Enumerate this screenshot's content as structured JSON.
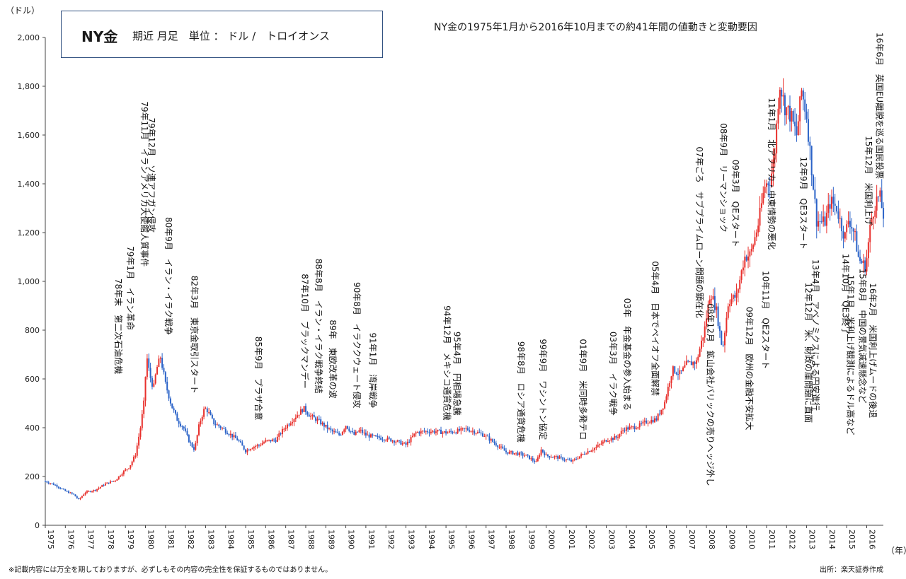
{
  "chart_data": {
    "type": "candlestick",
    "title": "NY金の1975年1月から2016年10月までの約41年間の値動きと変動要因",
    "legend": {
      "name": "NY金",
      "detail": "期近 月足　単位 ： ドル /　トロイオンス"
    },
    "ylabel": "（ドル）",
    "xlabel": "（年）",
    "ylim": [
      0,
      2000
    ],
    "yticks": [
      "0",
      "200",
      "400",
      "600",
      "800",
      "1,000",
      "1,200",
      "1,400",
      "1,600",
      "1,800",
      "2,000"
    ],
    "xlim": [
      1975,
      2016.83
    ],
    "xticks": [
      "1975",
      "1976",
      "1977",
      "1978",
      "1979",
      "1980",
      "1981",
      "1982",
      "1983",
      "1984",
      "1985",
      "1986",
      "1987",
      "1988",
      "1989",
      "1990",
      "1991",
      "1992",
      "1993",
      "1994",
      "1995",
      "1996",
      "1997",
      "1998",
      "1999",
      "2000",
      "2001",
      "2002",
      "2003",
      "2004",
      "2005",
      "2006",
      "2007",
      "2008",
      "2009",
      "2010",
      "2011",
      "2012",
      "2013",
      "2014",
      "2015",
      "2016"
    ],
    "colors": {
      "up": "#e8302c",
      "down": "#2b63c8",
      "axis": "#444444"
    },
    "price_path": [
      [
        1975.0,
        180
      ],
      [
        1975.5,
        165
      ],
      [
        1976.0,
        140
      ],
      [
        1976.4,
        127
      ],
      [
        1976.67,
        105
      ],
      [
        1977.0,
        135
      ],
      [
        1977.5,
        145
      ],
      [
        1978.0,
        170
      ],
      [
        1978.5,
        185
      ],
      [
        1978.9,
        220
      ],
      [
        1979.2,
        240
      ],
      [
        1979.5,
        290
      ],
      [
        1979.75,
        400
      ],
      [
        1979.95,
        520
      ],
      [
        1980.05,
        700
      ],
      [
        1980.2,
        620
      ],
      [
        1980.4,
        560
      ],
      [
        1980.55,
        640
      ],
      [
        1980.75,
        690
      ],
      [
        1981.0,
        580
      ],
      [
        1981.3,
        490
      ],
      [
        1981.6,
        430
      ],
      [
        1981.9,
        400
      ],
      [
        1982.2,
        340
      ],
      [
        1982.45,
        310
      ],
      [
        1982.7,
        420
      ],
      [
        1982.95,
        480
      ],
      [
        1983.1,
        470
      ],
      [
        1983.4,
        420
      ],
      [
        1983.8,
        400
      ],
      [
        1984.2,
        375
      ],
      [
        1984.6,
        350
      ],
      [
        1985.0,
        305
      ],
      [
        1985.3,
        320
      ],
      [
        1985.7,
        330
      ],
      [
        1986.0,
        345
      ],
      [
        1986.5,
        350
      ],
      [
        1986.9,
        395
      ],
      [
        1987.3,
        430
      ],
      [
        1987.6,
        455
      ],
      [
        1987.9,
        480
      ],
      [
        1988.2,
        450
      ],
      [
        1988.6,
        430
      ],
      [
        1988.9,
        410
      ],
      [
        1989.3,
        385
      ],
      [
        1989.7,
        370
      ],
      [
        1990.0,
        410
      ],
      [
        1990.4,
        370
      ],
      [
        1990.7,
        390
      ],
      [
        1991.0,
        370
      ],
      [
        1991.5,
        360
      ],
      [
        1992.0,
        355
      ],
      [
        1992.5,
        345
      ],
      [
        1993.0,
        330
      ],
      [
        1993.5,
        380
      ],
      [
        1993.9,
        385
      ],
      [
        1994.5,
        385
      ],
      [
        1995.0,
        380
      ],
      [
        1995.5,
        385
      ],
      [
        1996.0,
        395
      ],
      [
        1996.4,
        385
      ],
      [
        1996.9,
        370
      ],
      [
        1997.3,
        345
      ],
      [
        1997.7,
        320
      ],
      [
        1998.0,
        300
      ],
      [
        1998.5,
        295
      ],
      [
        1999.0,
        285
      ],
      [
        1999.5,
        258
      ],
      [
        1999.75,
        310
      ],
      [
        2000.0,
        285
      ],
      [
        2000.5,
        280
      ],
      [
        2001.0,
        268
      ],
      [
        2001.3,
        262
      ],
      [
        2001.7,
        285
      ],
      [
        2002.0,
        300
      ],
      [
        2002.5,
        320
      ],
      [
        2003.0,
        350
      ],
      [
        2003.5,
        360
      ],
      [
        2003.9,
        395
      ],
      [
        2004.3,
        400
      ],
      [
        2004.7,
        410
      ],
      [
        2005.0,
        425
      ],
      [
        2005.5,
        435
      ],
      [
        2005.9,
        500
      ],
      [
        2006.3,
        640
      ],
      [
        2006.7,
        620
      ],
      [
        2007.0,
        660
      ],
      [
        2007.5,
        670
      ],
      [
        2007.9,
        800
      ],
      [
        2008.2,
        960
      ],
      [
        2008.5,
        880
      ],
      [
        2008.8,
        720
      ],
      [
        2009.1,
        920
      ],
      [
        2009.5,
        940
      ],
      [
        2009.9,
        1100
      ],
      [
        2010.2,
        1110
      ],
      [
        2010.6,
        1240
      ],
      [
        2010.9,
        1390
      ],
      [
        2011.2,
        1420
      ],
      [
        2011.4,
        1520
      ],
      [
        2011.65,
        1820
      ],
      [
        2011.9,
        1720
      ],
      [
        2012.2,
        1680
      ],
      [
        2012.5,
        1600
      ],
      [
        2012.75,
        1780
      ],
      [
        2013.0,
        1680
      ],
      [
        2013.3,
        1420
      ],
      [
        2013.5,
        1250
      ],
      [
        2013.9,
        1240
      ],
      [
        2014.2,
        1330
      ],
      [
        2014.5,
        1300
      ],
      [
        2014.9,
        1180
      ],
      [
        2015.1,
        1260
      ],
      [
        2015.4,
        1190
      ],
      [
        2015.6,
        1090
      ],
      [
        2015.95,
        1060
      ],
      [
        2016.2,
        1240
      ],
      [
        2016.45,
        1330
      ],
      [
        2016.65,
        1350
      ],
      [
        2016.83,
        1270
      ]
    ],
    "annotations": [
      {
        "x": 1978.5,
        "text": "78年末　第二次石油危機",
        "y": 620
      },
      {
        "x": 1979.1,
        "text": "79年1月　イラン革命",
        "y": 800
      },
      {
        "x": 1979.8,
        "text": "79年11月　イランアメリカ大使館人質事件",
        "y": 1060
      },
      {
        "x": 1980.15,
        "text": "79年12月　ソ連アフガン侵攻",
        "y": 1200
      },
      {
        "x": 1981.0,
        "text": "80年9月　イラン・イラク戦争",
        "y": 780
      },
      {
        "x": 1982.3,
        "text": "82年3月　東京金取引スタート",
        "y": 540
      },
      {
        "x": 1985.5,
        "text": "85年9月　プラザ合意",
        "y": 430
      },
      {
        "x": 1987.8,
        "text": "87年10月　ブラックマンデー",
        "y": 560
      },
      {
        "x": 1988.5,
        "text": "88年8月　イラン・イラク戦争終結",
        "y": 540
      },
      {
        "x": 1989.2,
        "text": "89年　東欧改革の波",
        "y": 520
      },
      {
        "x": 1990.4,
        "text": "90年8月　イラククウェート侵攻",
        "y": 480
      },
      {
        "x": 1991.2,
        "text": "91年1月　湾岸戦争",
        "y": 480
      },
      {
        "x": 1994.9,
        "text": "94年12月　メキシコ通貨危機",
        "y": 430
      },
      {
        "x": 1995.4,
        "text": "95年4月　円相場急騰",
        "y": 450
      },
      {
        "x": 1998.6,
        "text": "98年8月　ロシア通貨危機",
        "y": 340
      },
      {
        "x": 1999.7,
        "text": "99年9月　ワシントン協定",
        "y": 350
      },
      {
        "x": 2001.7,
        "text": "01年9月　米同時多発テロ",
        "y": 350
      },
      {
        "x": 2003.2,
        "text": "03年3月　イラク戦争",
        "y": 450
      },
      {
        "x": 2003.9,
        "text": "03年　年金基金の参入始まる",
        "y": 470
      },
      {
        "x": 2005.3,
        "text": "05年4月　日本でペイオフ全面解禁",
        "y": 530
      },
      {
        "x": 2007.5,
        "text": "07年ごろ　サブプライムローン問題の顕在化",
        "y": 850
      },
      {
        "x": 2008.7,
        "text": "08年9月　リーマンショック",
        "y": 1200
      },
      {
        "x": 2008.05,
        "text": "08年12月　鉱山会社バリックの売りヘッジ外し",
        "y": 160
      },
      {
        "x": 2009.3,
        "text": "09年3月　QEスタート",
        "y": 1140
      },
      {
        "x": 2010.0,
        "text": "09年12月　欧州の金融不安拡大",
        "y": 390
      },
      {
        "x": 2010.8,
        "text": "10年11月　QE2スタート",
        "y": 640
      },
      {
        "x": 2011.1,
        "text": "11年1月　北アフリカ・中東情勢の悪化",
        "y": 1130
      },
      {
        "x": 2012.7,
        "text": "12年9月　QE3スタート",
        "y": 1130
      },
      {
        "x": 2012.95,
        "text": "12年12月　米、財政の崖問題に直面",
        "y": 420
      },
      {
        "x": 2013.3,
        "text": "13年4月　アベノミクスによる円安進行",
        "y": 470
      },
      {
        "x": 2014.8,
        "text": "14年10月　QE3終了",
        "y": 780
      },
      {
        "x": 2015.05,
        "text": "15年1月　米利上げ観測によるドル高など",
        "y": 370
      },
      {
        "x": 2015.65,
        "text": "15年8月　中国の景気減速懸念など",
        "y": 500
      },
      {
        "x": 2015.95,
        "text": "15年12月　米国利上げ",
        "y": 1230
      },
      {
        "x": 2016.15,
        "text": "16年2月　米国利上げムードの後退",
        "y": 440
      },
      {
        "x": 2016.5,
        "text": "16年6月　英国EU離脱を巡る国民投票",
        "y": 1420
      }
    ],
    "grid": false
  },
  "footer": {
    "note": "※記載内容には万全を期しておりますが、必ずしもその内容の完全性を保証するものではありません。",
    "source": "出所：楽天証券作成"
  }
}
